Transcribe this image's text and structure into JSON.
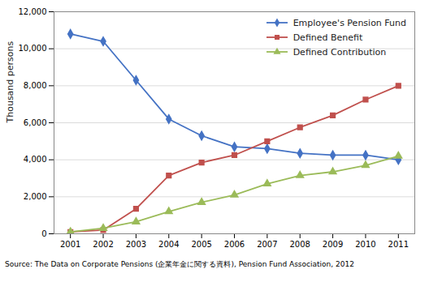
{
  "chart_data": {
    "type": "line",
    "x": [
      2001,
      2002,
      2003,
      2004,
      2005,
      2006,
      2007,
      2008,
      2009,
      2010,
      2011
    ],
    "xlim": [
      2000.5,
      2011.5
    ],
    "xticks": [
      2001,
      2002,
      2003,
      2004,
      2005,
      2006,
      2007,
      2008,
      2009,
      2010,
      2011
    ],
    "ylim": [
      0,
      12000
    ],
    "yticks": [
      0,
      {
        "value": 2000,
        "label": "2,000"
      },
      {
        "value": 4000,
        "label": "4,000"
      },
      {
        "value": 6000,
        "label": "6,000"
      },
      {
        "value": 8000,
        "label": "8,000"
      },
      {
        "value": 10000,
        "label": "10,000"
      },
      {
        "value": 12000,
        "label": "12,000"
      }
    ],
    "ylabel": "Thousand persons",
    "grid": true,
    "legend": "upper right",
    "series": [
      {
        "name": "Employee's Pension Fund",
        "color": "#4472C4",
        "marker": "diamond",
        "values": [
          10800,
          10400,
          8300,
          6200,
          5300,
          4700,
          4600,
          4350,
          4250,
          4250,
          4000
        ]
      },
      {
        "name": "Defined Benefit",
        "color": "#C0504D",
        "marker": "square",
        "values": [
          100,
          200,
          1350,
          3150,
          3850,
          4250,
          5000,
          5750,
          6400,
          7250,
          8000
        ]
      },
      {
        "name": "Defined Contribution",
        "color": "#9BBB59",
        "marker": "triangle",
        "values": [
          100,
          300,
          650,
          1200,
          1700,
          2100,
          2700,
          3150,
          3350,
          3700,
          4200
        ]
      }
    ],
    "source": "Source: The Data on Corporate Pensions (企業年金に関する資料), Pension Fund Association, 2012"
  }
}
